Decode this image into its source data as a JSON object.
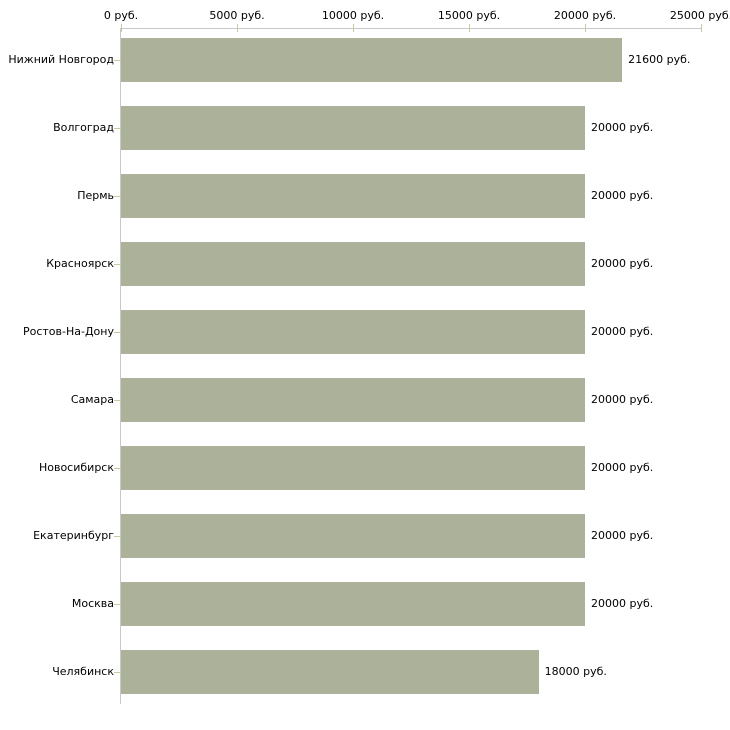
{
  "chart_data": {
    "type": "bar",
    "orientation": "horizontal",
    "categories": [
      "Нижний Новгород",
      "Волгоград",
      "Пермь",
      "Красноярск",
      "Ростов-На-Дону",
      "Самара",
      "Новосибирск",
      "Екатеринбург",
      "Москва",
      "Челябинск"
    ],
    "values": [
      21600,
      20000,
      20000,
      20000,
      20000,
      20000,
      20000,
      20000,
      20000,
      18000
    ],
    "value_labels": [
      "21600 руб.",
      "20000 руб.",
      "20000 руб.",
      "20000 руб.",
      "20000 руб.",
      "20000 руб.",
      "20000 руб.",
      "20000 руб.",
      "20000 руб.",
      "18000 руб."
    ],
    "x_ticks": [
      0,
      5000,
      10000,
      15000,
      20000,
      25000
    ],
    "x_tick_labels": [
      "0 руб.",
      "5000 руб.",
      "10000 руб.",
      "15000 руб.",
      "20000 руб.",
      "25000 руб."
    ],
    "xlim": [
      0,
      25000
    ],
    "unit": "руб.",
    "grid": false,
    "legend": "none",
    "colors": {
      "bar": "#acb29a",
      "axis_line": "#c8c8c8",
      "tick": "#c9c9a3",
      "text": "#000000",
      "background": "#ffffff"
    }
  }
}
